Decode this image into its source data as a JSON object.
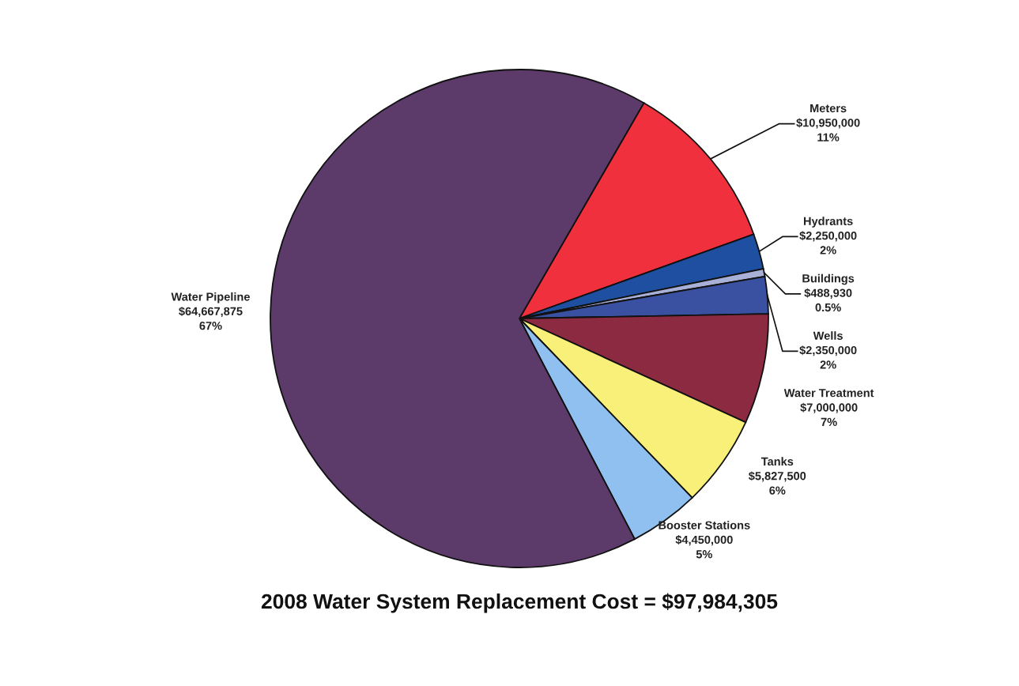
{
  "chart_data": {
    "type": "pie",
    "title": "2008 Water System Replacement Cost = $97,984,305",
    "categories": [
      "Meters",
      "Hydrants",
      "Buildings",
      "Wells",
      "Water Treatment",
      "Tanks",
      "Booster Stations",
      "Water Pipeline"
    ],
    "values": [
      10950000,
      2250000,
      488930,
      2350000,
      7000000,
      5827500,
      4450000,
      64667875
    ],
    "value_labels": [
      "$10,950,000\n11%",
      "$2,250,000\n2%",
      "$488,930\n0.5%",
      "$2,350,000\n2%",
      "$7,000,000\n7%",
      "$5,827,500\n6%",
      "$4,450,000\n5%",
      "$64,667,875\n67%"
    ],
    "colors": [
      "#f0303c",
      "#1f4fa0",
      "#a8b0d8",
      "#3a50a0",
      "#8b2a40",
      "#f8f078",
      "#90c0f0",
      "#5c3a6a"
    ],
    "legend": false
  }
}
